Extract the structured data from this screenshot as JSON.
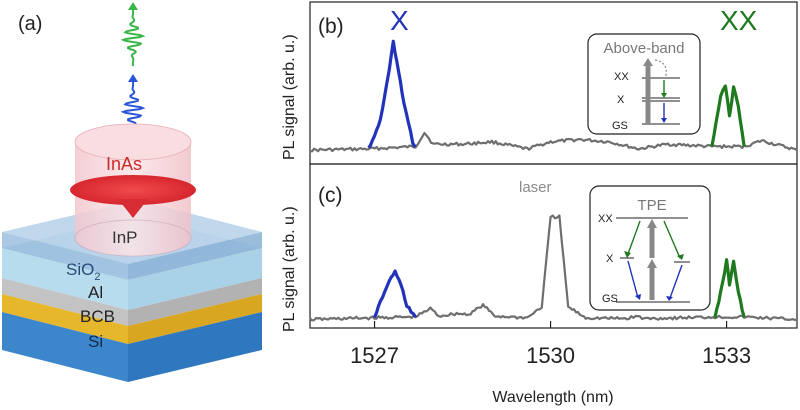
{
  "panel_a": {
    "label": "(a)",
    "layers": [
      {
        "text": "SiO",
        "sub": "2",
        "color": "#b9dff0"
      },
      {
        "text": "Al",
        "color": "#bdbdbd"
      },
      {
        "text": "BCB",
        "color": "#e3b52a"
      },
      {
        "text": "Si",
        "color": "#3f8ed0"
      }
    ],
    "substrate_text": "InP",
    "qd_text": "InAs",
    "photon_colors": {
      "xx": "#39b54a",
      "x": "#2b55d6"
    }
  },
  "x_axis": {
    "label": "Wavelength (nm)",
    "ticks": [
      "1527",
      "1530",
      "1533"
    ]
  },
  "panel_b": {
    "label": "(b)",
    "ylabel": "PL signal (arb. u.)",
    "peak_labels": {
      "x": "X",
      "xx": "XX"
    },
    "inset": {
      "title": "Above-band",
      "levels": [
        "XX",
        "X",
        "GS"
      ]
    }
  },
  "panel_c": {
    "label": "(c)",
    "ylabel": "PL signal (arb. u.)",
    "laser_label": "laser",
    "inset": {
      "title": "TPE",
      "levels": [
        "XX",
        "X",
        "GS"
      ]
    }
  },
  "colors": {
    "x": "#2233bb",
    "xx": "#1f7a1f",
    "background": "#6e6e6e"
  },
  "chart_data": [
    {
      "type": "line",
      "panel": "(b)",
      "xlim": [
        1525.9,
        1534.2
      ],
      "ylim": [
        0,
        1
      ],
      "series": [
        {
          "name": "X",
          "color": "#2233bb",
          "points": [
            [
              1526.9,
              0.06
            ],
            [
              1527.1,
              0.3
            ],
            [
              1527.25,
              0.72
            ],
            [
              1527.32,
              0.97
            ],
            [
              1527.38,
              0.8
            ],
            [
              1527.5,
              0.45
            ],
            [
              1527.65,
              0.12
            ],
            [
              1527.7,
              0.08
            ]
          ]
        },
        {
          "name": "XX",
          "color": "#1f7a1f",
          "points": [
            [
              1532.75,
              0.08
            ],
            [
              1532.9,
              0.5
            ],
            [
              1532.98,
              0.6
            ],
            [
              1533.05,
              0.35
            ],
            [
              1533.12,
              0.58
            ],
            [
              1533.2,
              0.42
            ],
            [
              1533.3,
              0.08
            ]
          ]
        },
        {
          "color": "#6e6e6e",
          "points": [
            [
              1525.9,
              0.05
            ],
            [
              1526.9,
              0.06
            ],
            [
              1527.7,
              0.08
            ],
            [
              1527.85,
              0.2
            ],
            [
              1528.0,
              0.1
            ],
            [
              1528.5,
              0.1
            ],
            [
              1529.0,
              0.12
            ],
            [
              1529.6,
              0.06
            ],
            [
              1530.0,
              0.12
            ],
            [
              1530.5,
              0.14
            ],
            [
              1531.0,
              0.12
            ],
            [
              1531.5,
              0.06
            ],
            [
              1532.0,
              0.1
            ],
            [
              1532.75,
              0.08
            ],
            [
              1533.3,
              0.08
            ],
            [
              1533.6,
              0.13
            ],
            [
              1534.2,
              0.05
            ]
          ]
        }
      ]
    },
    {
      "type": "line",
      "panel": "(c)",
      "xlim": [
        1525.9,
        1534.2
      ],
      "ylim": [
        0,
        1
      ],
      "series": [
        {
          "name": "X",
          "color": "#2233bb",
          "points": [
            [
              1527.0,
              0.05
            ],
            [
              1527.1,
              0.25
            ],
            [
              1527.25,
              0.48
            ],
            [
              1527.35,
              0.6
            ],
            [
              1527.45,
              0.44
            ],
            [
              1527.55,
              0.2
            ],
            [
              1527.7,
              0.06
            ]
          ]
        },
        {
          "name": "XX",
          "color": "#1f7a1f",
          "points": [
            [
              1532.8,
              0.06
            ],
            [
              1532.9,
              0.35
            ],
            [
              1533.0,
              0.73
            ],
            [
              1533.05,
              0.45
            ],
            [
              1533.12,
              0.72
            ],
            [
              1533.2,
              0.35
            ],
            [
              1533.3,
              0.06
            ]
          ]
        },
        {
          "name": "laser",
          "color": "#6e6e6e",
          "points": [
            [
              1525.9,
              0.03
            ],
            [
              1527.0,
              0.05
            ],
            [
              1527.7,
              0.06
            ],
            [
              1527.95,
              0.16
            ],
            [
              1528.1,
              0.07
            ],
            [
              1528.4,
              0.1
            ],
            [
              1528.6,
              0.09
            ],
            [
              1528.85,
              0.2
            ],
            [
              1529.05,
              0.07
            ],
            [
              1529.6,
              0.05
            ],
            [
              1529.85,
              0.18
            ],
            [
              1530.0,
              1.25
            ],
            [
              1530.15,
              1.25
            ],
            [
              1530.3,
              0.18
            ],
            [
              1530.6,
              0.05
            ],
            [
              1531.3,
              0.04
            ],
            [
              1531.45,
              0.07
            ],
            [
              1531.6,
              0.04
            ],
            [
              1532.8,
              0.06
            ],
            [
              1533.3,
              0.06
            ],
            [
              1534.2,
              0.03
            ]
          ]
        }
      ]
    }
  ]
}
